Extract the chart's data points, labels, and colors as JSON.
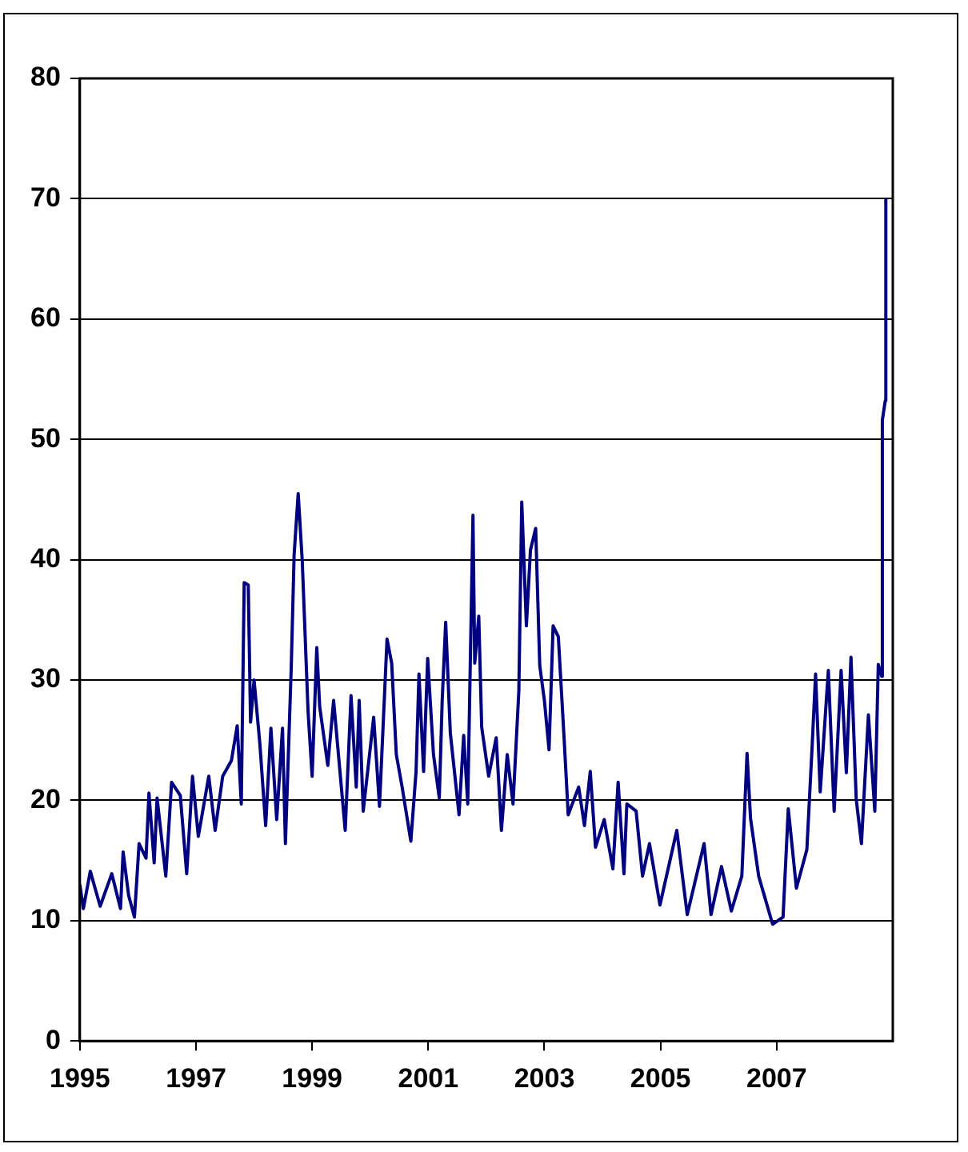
{
  "chart_data": {
    "type": "line",
    "xlim": [
      1995,
      2009
    ],
    "xticks": [
      1995,
      1997,
      1999,
      2001,
      2003,
      2005,
      2007
    ],
    "ylim": [
      0,
      80
    ],
    "yticks": [
      0,
      10,
      20,
      30,
      40,
      50,
      60,
      70,
      80
    ],
    "grid": "y",
    "legend": false,
    "marker": "none",
    "line_style": "solid",
    "series": [
      {
        "color": "#000080",
        "x": [
          1995.0,
          1995.06,
          1995.18,
          1995.35,
          1995.55,
          1995.7,
          1995.745,
          1995.84,
          1995.94,
          1996.02,
          1996.14,
          1996.19,
          1996.28,
          1996.33,
          1996.48,
          1996.58,
          1996.73,
          1996.84,
          1996.94,
          1997.04,
          1997.22,
          1997.33,
          1997.46,
          1997.61,
          1997.71,
          1997.78,
          1997.83,
          1997.9,
          1997.94,
          1998.0,
          1998.1,
          1998.2,
          1998.29,
          1998.39,
          1998.49,
          1998.54,
          1998.64,
          1998.69,
          1998.76,
          1998.83,
          1998.93,
          1999.0,
          1999.08,
          1999.13,
          1999.27,
          1999.37,
          1999.57,
          1999.67,
          1999.76,
          1999.81,
          1999.88,
          2000.06,
          2000.16,
          2000.29,
          2000.37,
          2000.45,
          2000.55,
          2000.7,
          2000.79,
          2000.84,
          2000.92,
          2000.99,
          2001.09,
          2001.19,
          2001.24,
          2001.3,
          2001.38,
          2001.53,
          2001.61,
          2001.68,
          2001.77,
          2001.8,
          2001.87,
          2001.92,
          2002.04,
          2002.17,
          2002.26,
          2002.36,
          2002.46,
          2002.56,
          2002.61,
          2002.69,
          2002.76,
          2002.85,
          2002.92,
          2003.0,
          2003.08,
          2003.15,
          2003.24,
          2003.34,
          2003.41,
          2003.59,
          2003.69,
          2003.79,
          2003.88,
          2004.03,
          2004.18,
          2004.27,
          2004.37,
          2004.42,
          2004.58,
          2004.69,
          2004.81,
          2004.99,
          2005.28,
          2005.46,
          2005.75,
          2005.87,
          2006.05,
          2006.22,
          2006.4,
          2006.49,
          2006.55,
          2006.69,
          2006.93,
          2007.11,
          2007.2,
          2007.34,
          2007.52,
          2007.61,
          2007.67,
          2007.75,
          2007.89,
          2007.99,
          2008.11,
          2008.2,
          2008.28,
          2008.37,
          2008.46,
          2008.58,
          2008.69,
          2008.75,
          2008.81,
          2008.82,
          2008.87,
          2008.88
        ],
        "values": [
          13,
          11,
          14.1,
          11.2,
          13.9,
          11,
          15.7,
          12.1,
          10.3,
          16.4,
          15.2,
          20.6,
          14.8,
          20.2,
          13.7,
          21.5,
          20.4,
          13.9,
          22,
          17,
          22,
          17.5,
          22,
          23.3,
          26.2,
          19.7,
          38.1,
          37.9,
          26.5,
          30,
          24.7,
          17.9,
          26,
          18.4,
          26,
          16.4,
          31,
          40.4,
          45.5,
          39.9,
          27.4,
          22,
          32.7,
          27.8,
          22.9,
          28.3,
          17.5,
          28.7,
          21.1,
          28.3,
          19.1,
          26.9,
          19.5,
          33.4,
          31.4,
          23.8,
          21.1,
          16.6,
          22.4,
          30.5,
          22.4,
          31.8,
          23.8,
          20.2,
          28.3,
          34.8,
          25.6,
          18.8,
          25.4,
          19.7,
          43.7,
          31.4,
          35.3,
          26.1,
          22,
          25.2,
          17.5,
          23.8,
          19.7,
          29.1,
          44.8,
          34.5,
          40.8,
          42.6,
          31.2,
          28.3,
          24.2,
          34.5,
          33.6,
          25.1,
          18.8,
          21.1,
          17.9,
          22.4,
          16.1,
          18.4,
          14.3,
          21.5,
          13.9,
          19.7,
          19.1,
          13.7,
          16.4,
          11.3,
          17.5,
          10.5,
          16.4,
          10.5,
          14.5,
          10.8,
          13.7,
          23.9,
          18.5,
          13.7,
          9.7,
          10.3,
          19.3,
          12.7,
          15.9,
          24.4,
          30.5,
          20.7,
          30.8,
          19.1,
          30.8,
          22.3,
          31.9,
          20.1,
          16.4,
          27.1,
          19.1,
          31.3,
          30.3,
          51.6,
          53.2,
          70
        ]
      }
    ]
  }
}
